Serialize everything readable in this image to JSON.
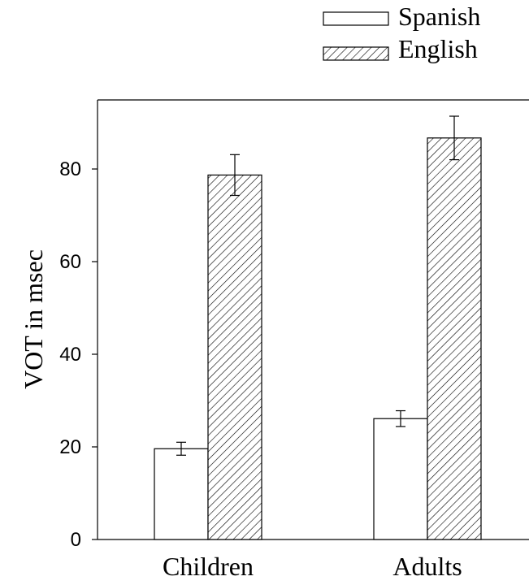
{
  "chart_data": {
    "type": "bar",
    "categories": [
      "Children",
      "Adults"
    ],
    "series": [
      {
        "name": "Spanish",
        "values": [
          19.6,
          26.1
        ],
        "errors": [
          1.4,
          1.7
        ],
        "pattern": "none"
      },
      {
        "name": "English",
        "values": [
          78.7,
          86.7
        ],
        "errors": [
          4.4,
          4.7
        ],
        "pattern": "diagonal-hatch"
      }
    ],
    "title": "",
    "xlabel": "",
    "ylabel": "VOT in msec",
    "ylim": [
      0,
      95
    ],
    "yticks": [
      "0",
      "20",
      "40",
      "60",
      "80"
    ],
    "grid": false,
    "legend_position": "top-right",
    "colors": {
      "fill": "#ffffff",
      "stroke": "#000000",
      "axis": "#000000"
    }
  }
}
